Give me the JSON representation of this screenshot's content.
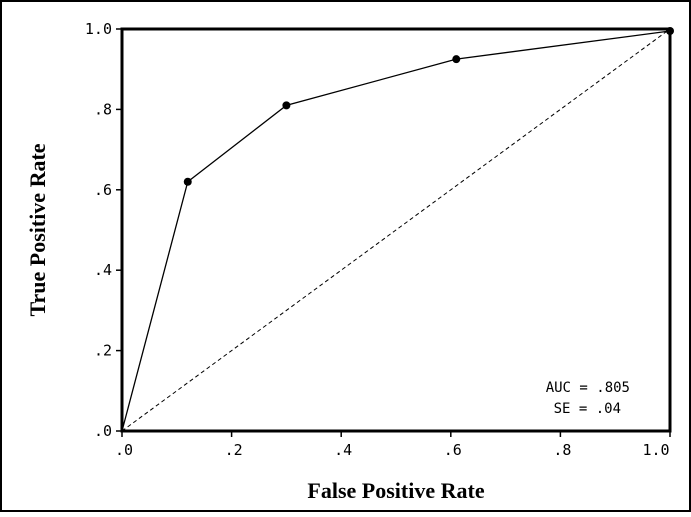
{
  "chart_data": {
    "type": "line",
    "title": "",
    "xlabel": "False Positive Rate",
    "ylabel": "True Positive Rate",
    "xlim": [
      0,
      1
    ],
    "ylim": [
      0,
      1
    ],
    "x_ticks": [
      ".0",
      ".2",
      ".4",
      ".6",
      ".8",
      "1.0"
    ],
    "y_ticks": [
      ".0",
      ".2",
      ".4",
      ".6",
      ".8",
      "1.0"
    ],
    "grid": false,
    "series": [
      {
        "style": "solid-with-markers",
        "x": [
          0.0,
          0.12,
          0.3,
          0.61,
          1.0
        ],
        "y": [
          0.0,
          0.62,
          0.81,
          0.925,
          0.995
        ]
      },
      {
        "style": "dashed",
        "x": [
          0.0,
          1.0
        ],
        "y": [
          0.0,
          1.0
        ]
      }
    ],
    "annotations": [
      "AUC = .805",
      "SE = .04"
    ],
    "annotation_position": "bottom-right",
    "colors": {
      "line": "#000000",
      "background": "#ffffff"
    }
  }
}
